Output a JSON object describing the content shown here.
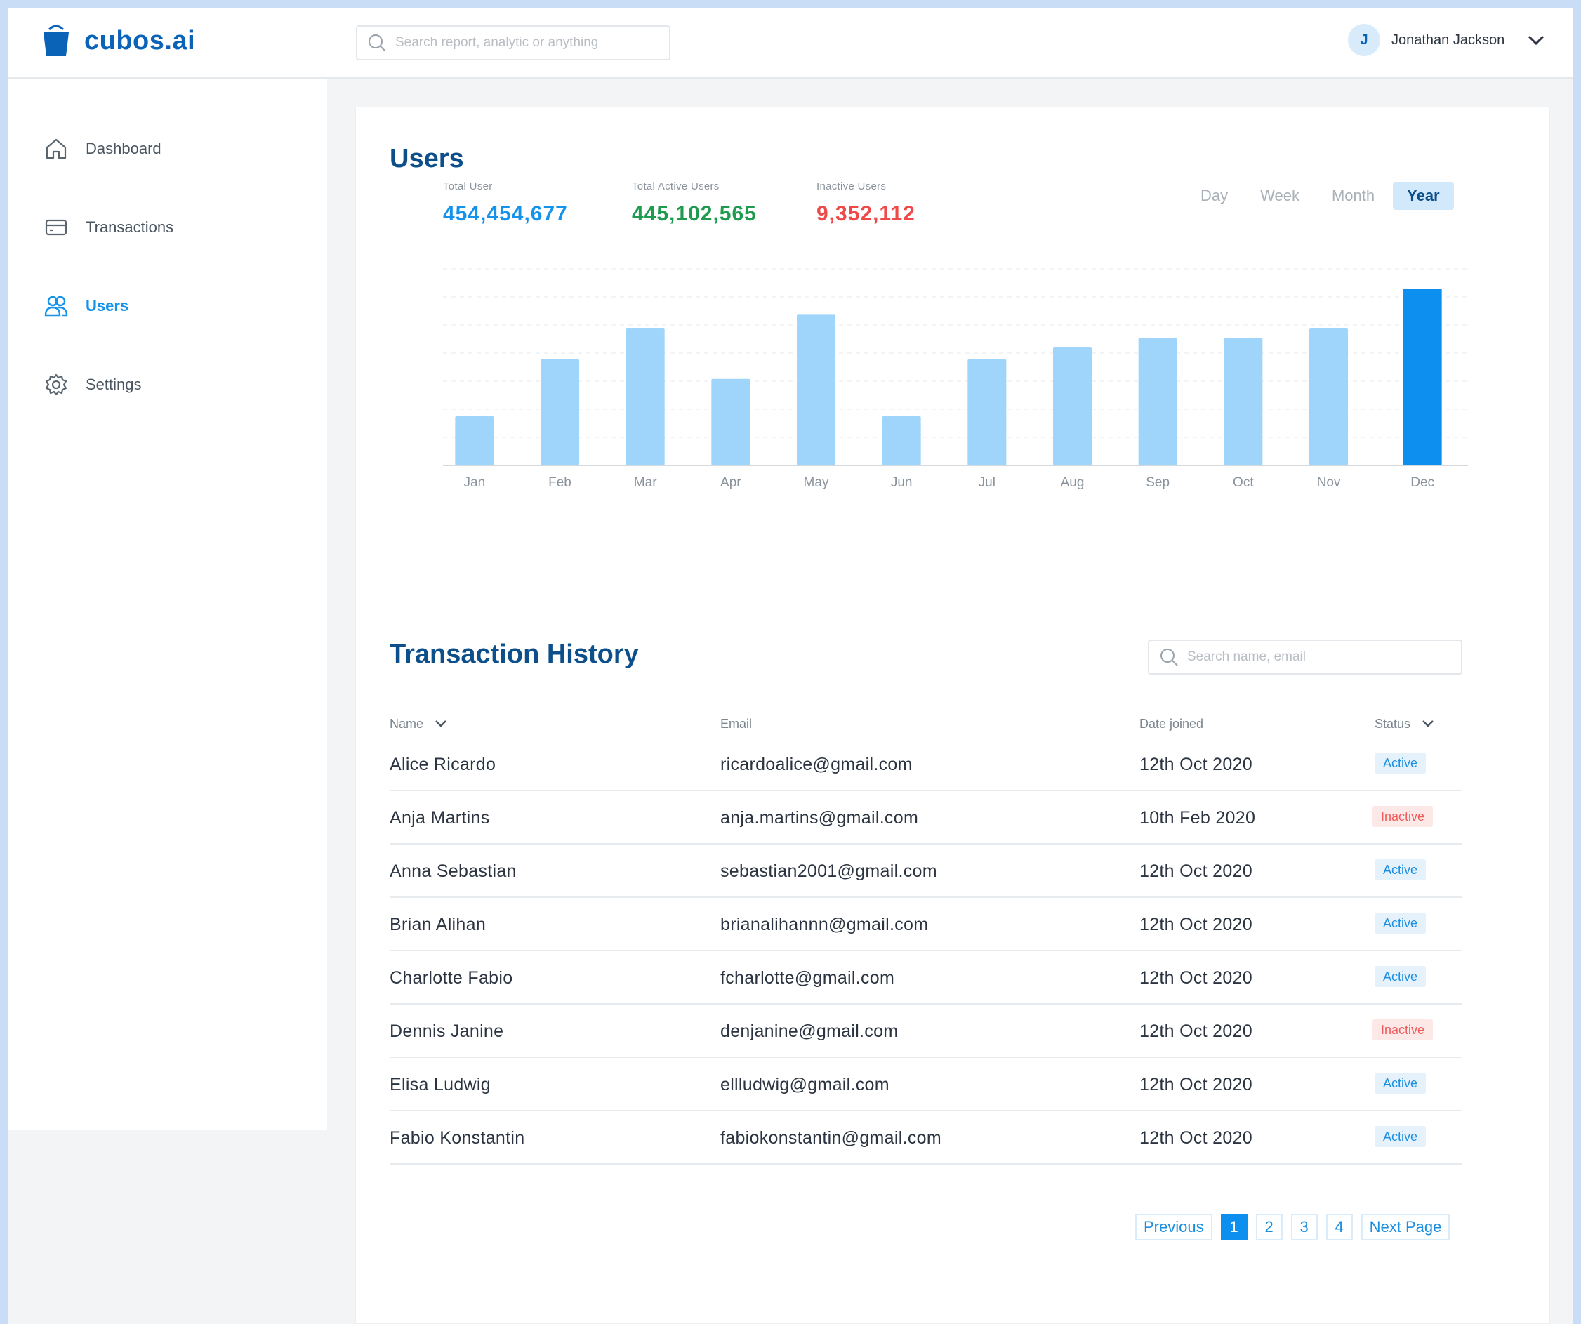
{
  "brand": {
    "name": "cubos.ai"
  },
  "top_search": {
    "placeholder": "Search report, analytic or anything"
  },
  "user": {
    "initial": "J",
    "name": "Jonathan Jackson"
  },
  "sidebar": {
    "items": [
      {
        "label": "Dashboard",
        "icon": "home-icon",
        "active": false
      },
      {
        "label": "Transactions",
        "icon": "card-icon",
        "active": false
      },
      {
        "label": "Users",
        "icon": "users-icon",
        "active": true
      },
      {
        "label": "Settings",
        "icon": "gear-icon",
        "active": false
      }
    ]
  },
  "users_section": {
    "title": "Users",
    "stats": [
      {
        "label": "Total User",
        "value": "454,454,677",
        "color": "#1593ea"
      },
      {
        "label": "Total Active Users",
        "value": "445,102,565",
        "color": "#1f9b4f"
      },
      {
        "label": "Inactive Users",
        "value": "9,352,112",
        "color": "#ee4a4a"
      }
    ],
    "periods": [
      "Day",
      "Week",
      "Month",
      "Year"
    ],
    "selected_period": "Year"
  },
  "chart_data": {
    "type": "bar",
    "categories": [
      "Jan",
      "Feb",
      "Mar",
      "Apr",
      "May",
      "Jun",
      "Jul",
      "Aug",
      "Sep",
      "Oct",
      "Nov",
      "Dec"
    ],
    "values": [
      25,
      54,
      70,
      44,
      77,
      25,
      54,
      60,
      65,
      65,
      70,
      90
    ],
    "ylim": [
      0,
      100
    ],
    "highlight_index": 11,
    "bar_color": "#9fd5fb",
    "highlight_color": "#0d8ff0",
    "grid": true
  },
  "transactions": {
    "title": "Transaction History",
    "search_placeholder": "Search name, email",
    "columns": {
      "name": "Name",
      "email": "Email",
      "date": "Date joined",
      "status": "Status"
    },
    "rows": [
      {
        "name": "Alice Ricardo",
        "email": "ricardoalice@gmail.com",
        "date": "12th Oct 2020",
        "status": "Active"
      },
      {
        "name": "Anja Martins",
        "email": "anja.martins@gmail.com",
        "date": "10th Feb 2020",
        "status": "Inactive"
      },
      {
        "name": "Anna Sebastian",
        "email": "sebastian2001@gmail.com",
        "date": "12th Oct 2020",
        "status": "Active"
      },
      {
        "name": "Brian Alihan",
        "email": "brianalihannn@gmail.com",
        "date": "12th Oct 2020",
        "status": "Active"
      },
      {
        "name": "Charlotte Fabio",
        "email": "fcharlotte@gmail.com",
        "date": "12th Oct 2020",
        "status": "Active"
      },
      {
        "name": "Dennis  Janine",
        "email": "denjanine@gmail.com",
        "date": "12th Oct 2020",
        "status": "Inactive"
      },
      {
        "name": "Elisa  Ludwig",
        "email": "ellludwig@gmail.com",
        "date": "12th Oct 2020",
        "status": "Active"
      },
      {
        "name": "Fabio Konstantin",
        "email": "fabiokonstantin@gmail.com",
        "date": "12th Oct 2020",
        "status": "Active"
      }
    ]
  },
  "pagination": {
    "previous": "Previous",
    "pages": [
      "1",
      "2",
      "3",
      "4"
    ],
    "current": "1",
    "next": "Next Page"
  }
}
